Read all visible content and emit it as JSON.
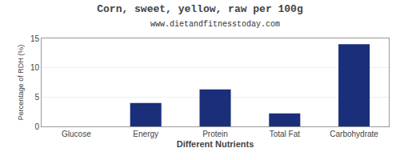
{
  "chart_data": {
    "type": "bar",
    "title": "Corn, sweet, yellow, raw per 100g",
    "subtitle": "www.dietandfitnesstoday.com",
    "xlabel": "Different Nutrients",
    "ylabel": "Percentage of RDH (%)",
    "categories": [
      "Glucose",
      "Energy",
      "Protein",
      "Total Fat",
      "Carbohydrate"
    ],
    "values": [
      0,
      4.0,
      6.3,
      2.2,
      14.0
    ],
    "color": "#1a2e7a",
    "ylim": [
      0,
      15
    ],
    "yticks": [
      0,
      5,
      10,
      15
    ],
    "grid": true
  }
}
